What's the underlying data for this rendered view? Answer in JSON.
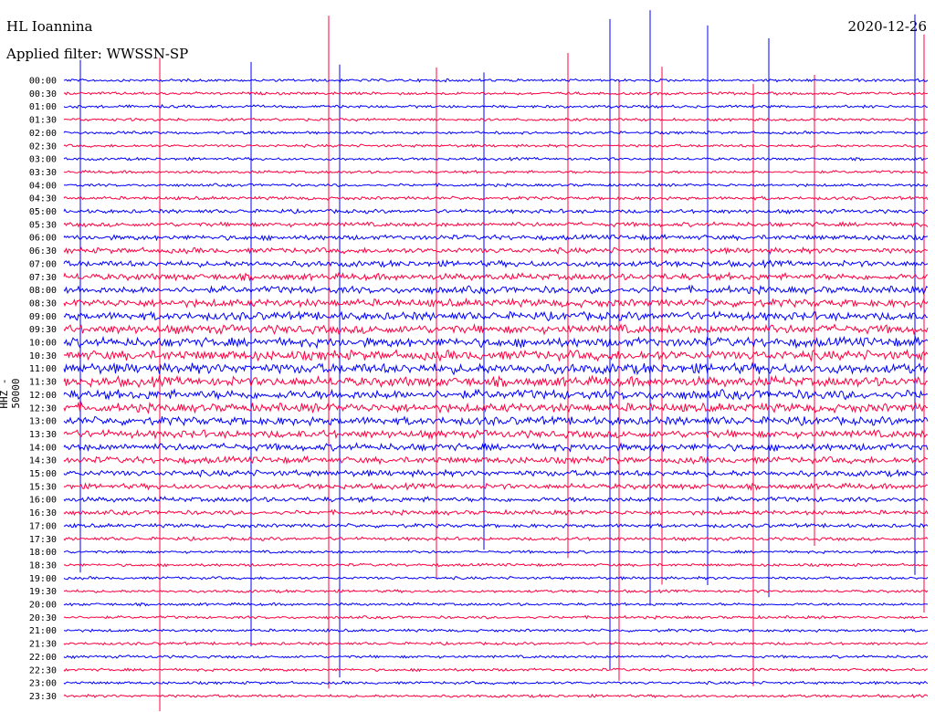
{
  "header": {
    "station": "HL Ioannina",
    "filter_text": "Applied filter: WWSSN-SP",
    "date": "2020-12-26"
  },
  "chart_data": {
    "type": "line",
    "title": "HL Ioannina",
    "ylabel": "HHZ - 50000",
    "row_labels": [
      "00:00",
      "00:30",
      "01:00",
      "01:30",
      "02:00",
      "02:30",
      "03:00",
      "03:30",
      "04:00",
      "04:30",
      "05:00",
      "05:30",
      "06:00",
      "06:30",
      "07:00",
      "07:30",
      "08:00",
      "08:30",
      "09:00",
      "09:30",
      "10:00",
      "10:30",
      "11:00",
      "11:30",
      "12:00",
      "12:30",
      "13:00",
      "13:30",
      "14:00",
      "14:30",
      "15:00",
      "15:30",
      "16:00",
      "16:30",
      "17:00",
      "17:30",
      "18:00",
      "18:30",
      "19:00",
      "19:30",
      "20:00",
      "20:30",
      "21:00",
      "21:30",
      "22:00",
      "22:30",
      "23:00",
      "23:30"
    ],
    "series_colors": [
      "#0000ff",
      "#ff0040"
    ],
    "grid": false
  }
}
